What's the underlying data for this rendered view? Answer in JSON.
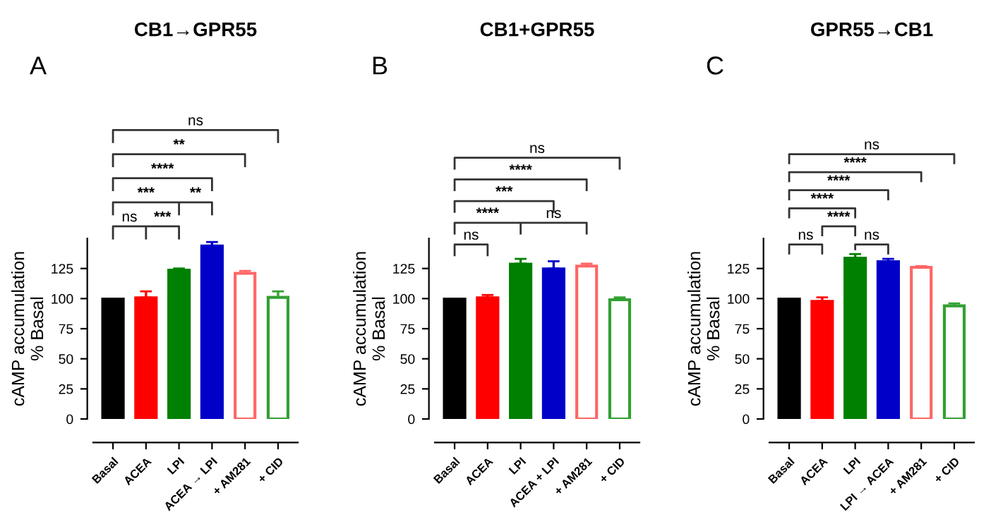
{
  "chart_data": [
    {
      "type": "bar",
      "title": "CB1→GPR55",
      "ylabel": "cAMP accumulation\n% Basal",
      "annotations": [
        "A",
        "ns",
        "***",
        "***",
        "**",
        "****",
        "**",
        "ns"
      ],
      "categories": [
        "Basal",
        "ACEA",
        "LPI",
        "ACEA → LPI",
        "+ AM281",
        "+ CID"
      ],
      "series": [
        {
          "values": [
            100,
            101,
            124,
            144,
            null,
            null
          ],
          "colors": [
            "#000000",
            "#ff0000",
            "#008000",
            "#0000c8",
            "#ff6666",
            "#33a033"
          ],
          "errors": [
            null,
            [
              101,
              106
            ],
            [
              124,
              125
            ],
            [
              144,
              147
            ],
            null,
            null
          ]
        },
        {
          "values": [
            null,
            null,
            null,
            null,
            121,
            101
          ],
          "colors": [
            "#000000",
            "#ff0000",
            "#008000",
            "#0000c8",
            "#ff6666",
            "#33a033"
          ],
          "errors": [
            null,
            null,
            null,
            null,
            [
              121,
              123
            ],
            [
              101,
              106
            ]
          ]
        }
      ],
      "ylim": [
        0,
        150
      ],
      "yticks": [
        0,
        25,
        50,
        75,
        100,
        125
      ],
      "grid": false,
      "legend": false
    },
    {
      "type": "bar",
      "title": "CB1+GPR55",
      "ylabel": "cAMP accumulation\n% Basal",
      "annotations": [
        "B",
        "ns",
        "****",
        "ns",
        "***",
        "****",
        "ns"
      ],
      "categories": [
        "Basal",
        "ACEA",
        "LPI",
        "ACEA + LPI",
        "+ AM281",
        "+ CID"
      ],
      "series": [
        {
          "values": [
            100,
            101,
            129,
            125,
            null,
            null
          ],
          "colors": [
            "#000000",
            "#ff0000",
            "#008000",
            "#0000c8",
            "#ff6666",
            "#33a033"
          ],
          "errors": [
            null,
            [
              101,
              103
            ],
            [
              129,
              133
            ],
            [
              125,
              131
            ],
            null,
            null
          ]
        },
        {
          "values": [
            null,
            null,
            null,
            null,
            127,
            99
          ],
          "colors": [
            "#000000",
            "#ff0000",
            "#008000",
            "#0000c8",
            "#ff6666",
            "#33a033"
          ],
          "errors": [
            null,
            null,
            null,
            null,
            [
              127,
              129
            ],
            [
              99,
              101
            ]
          ]
        }
      ],
      "ylim": [
        0,
        150
      ],
      "yticks": [
        0,
        25,
        50,
        75,
        100,
        125
      ],
      "grid": false,
      "legend": false
    },
    {
      "type": "bar",
      "title": "GPR55→CB1",
      "ylabel": "cAMP accumulation\n% Basal",
      "annotations": [
        "C",
        "ns",
        "ns",
        "****",
        "****",
        "****",
        "****",
        "ns"
      ],
      "categories": [
        "Basal",
        "ACEA",
        "LPI",
        "LPI → ACEA",
        "+ AM281",
        "+ CID"
      ],
      "series": [
        {
          "values": [
            100,
            98,
            134,
            131,
            null,
            null
          ],
          "colors": [
            "#000000",
            "#ff0000",
            "#008000",
            "#0000c8",
            "#ff6666",
            "#33a033"
          ],
          "errors": [
            null,
            [
              98,
              101
            ],
            [
              134,
              137
            ],
            [
              131,
              133
            ],
            null,
            null
          ]
        },
        {
          "values": [
            null,
            null,
            null,
            null,
            126,
            94
          ],
          "colors": [
            "#000000",
            "#ff0000",
            "#008000",
            "#0000c8",
            "#ff6666",
            "#33a033"
          ],
          "errors": [
            null,
            null,
            null,
            null,
            [
              126,
              127
            ],
            [
              94,
              96
            ]
          ]
        }
      ],
      "ylim": [
        0,
        150
      ],
      "yticks": [
        0,
        25,
        50,
        75,
        100,
        125
      ],
      "grid": false,
      "legend": false
    }
  ]
}
